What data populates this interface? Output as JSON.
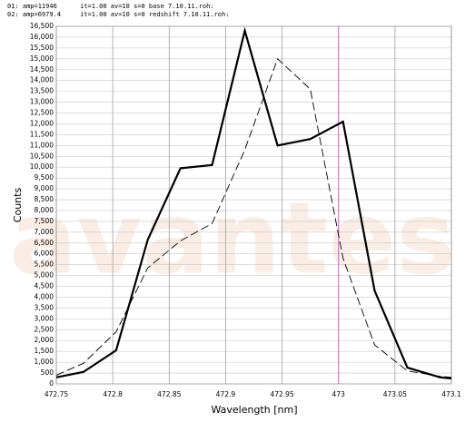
{
  "chart_data": {
    "type": "line",
    "x_label": "Wavelength [nm]",
    "y_label": "Counts",
    "watermark": "avantes",
    "x": [
      472.75,
      472.774,
      472.803,
      472.831,
      472.86,
      472.888,
      472.917,
      472.946,
      472.975,
      473.004,
      473.032,
      473.061,
      473.09,
      473.1
    ],
    "series": [
      {
        "name": "01: amp=11946      it=1.00 av=10 s=0 base 7.10.11.roh:",
        "color": "#000000",
        "dashed": false,
        "values": [
          300,
          550,
          1550,
          6650,
          9950,
          10100,
          16300,
          11000,
          11300,
          12100,
          4300,
          750,
          300,
          250
        ]
      },
      {
        "name": "02: amp=6979.4     it=1.00 av=10 s=0 redshift 7.10.11.roh:",
        "color": "#000000",
        "dashed": true,
        "values": [
          400,
          950,
          2400,
          5350,
          6600,
          7400,
          10800,
          15000,
          13600,
          5800,
          1800,
          600,
          350,
          300
        ]
      }
    ],
    "marker_x": 473,
    "marker_color": "#e060e0",
    "xlim": [
      472.75,
      473.1
    ],
    "xticks": [
      472.75,
      472.8,
      472.85,
      472.9,
      472.95,
      473,
      473.05,
      473.1
    ],
    "ylim": [
      0,
      16500
    ],
    "yticks": [
      0,
      500,
      {
        "value": 1000,
        "label": "1,000"
      },
      {
        "value": 1500,
        "label": "1,500"
      },
      {
        "value": 2000,
        "label": "2,000"
      },
      {
        "value": 2500,
        "label": "2,500"
      },
      {
        "value": 3000,
        "label": "3,000"
      },
      {
        "value": 3500,
        "label": "3,500"
      },
      {
        "value": 4000,
        "label": "4,000"
      },
      {
        "value": 4500,
        "label": "4,500"
      },
      {
        "value": 5000,
        "label": "5,000"
      },
      {
        "value": 5500,
        "label": "5,500"
      },
      {
        "value": 6000,
        "label": "6,000"
      },
      {
        "value": 6500,
        "label": "6,500"
      },
      {
        "value": 7000,
        "label": "7,000"
      },
      {
        "value": 7500,
        "label": "7,500"
      },
      {
        "value": 8000,
        "label": "8,000"
      },
      {
        "value": 8500,
        "label": "8,500"
      },
      {
        "value": 9000,
        "label": "9,000"
      },
      {
        "value": 9500,
        "label": "9,500"
      },
      {
        "value": 10000,
        "label": "10,000"
      },
      {
        "value": 10500,
        "label": "10,500"
      },
      {
        "value": 11000,
        "label": "11,000"
      },
      {
        "value": 11500,
        "label": "11,500"
      },
      {
        "value": 12000,
        "label": "12,000"
      },
      {
        "value": 12500,
        "label": "12,500"
      },
      {
        "value": 13000,
        "label": "13,000"
      },
      {
        "value": 13500,
        "label": "13,500"
      },
      {
        "value": 14000,
        "label": "14,000"
      },
      {
        "value": 14500,
        "label": "14,500"
      },
      {
        "value": 15000,
        "label": "15,000"
      },
      {
        "value": 15500,
        "label": "15,500"
      },
      {
        "value": 16000,
        "label": "16,000"
      },
      {
        "value": 16500,
        "label": "16,500"
      }
    ],
    "grid": true
  }
}
